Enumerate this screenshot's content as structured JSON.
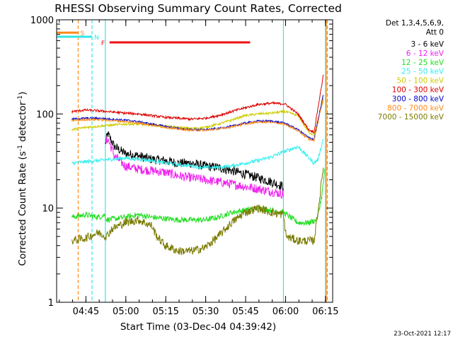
{
  "chart_data": {
    "type": "line",
    "title": "RHESSI Observing Summary Count Rates, Corrected",
    "xlabel": "Start Time (03-Dec-04 04:39:42)",
    "ylabel_main": "Corrected Count Rate (s",
    "ylabel_sup1": "-1",
    "ylabel_mid": " detector",
    "ylabel_sup2": "-1",
    "ylabel_end": ")",
    "yscale": "log",
    "ylim": [
      1,
      1000
    ],
    "xlim_minutes": [
      -5.7,
      98
    ],
    "x_ticks": [
      {
        "m": 5.3,
        "label": "04:45"
      },
      {
        "m": 20.3,
        "label": "05:00"
      },
      {
        "m": 35.3,
        "label": "05:15"
      },
      {
        "m": 50.3,
        "label": "05:30"
      },
      {
        "m": 65.3,
        "label": "05:45"
      },
      {
        "m": 80.3,
        "label": "06:00"
      },
      {
        "m": 95.3,
        "label": "06:15"
      }
    ],
    "y_ticks": [
      {
        "v": 1,
        "label": "1"
      },
      {
        "v": 10,
        "label": "10"
      },
      {
        "v": 100,
        "label": "100"
      },
      {
        "v": 1000,
        "label": "1000"
      }
    ],
    "legend": {
      "placement": "right",
      "header1": "Det 1,3,4,5,6,9,",
      "header2": "Att 0"
    },
    "footer_date": "23-Oct-2021 12:17",
    "flags": [
      {
        "label": "S",
        "color": "#ff8c1a",
        "y": 730,
        "x0": -5.7,
        "x1": 2.4
      },
      {
        "label": "N",
        "color": "#33e6e6",
        "y": 660,
        "x0": -5.7,
        "x1": 7.6
      },
      {
        "label": "F",
        "color": "#ee1111",
        "y": 575,
        "x0": 14.2,
        "x1": 67.0
      }
    ],
    "vlines": [
      {
        "m": 2.4,
        "color": "#ff8c1a",
        "dash": true
      },
      {
        "m": 7.6,
        "color": "#33e6e6",
        "dash": true
      },
      {
        "m": 12.6,
        "color": "#33e6e6",
        "dash": false
      },
      {
        "m": 79.5,
        "color": "#33e6e6",
        "dash": false
      },
      {
        "m": 95.3,
        "color": "#33e6e6",
        "dash": false
      },
      {
        "m": 95.6,
        "color": "#ff8c1a",
        "dash": false
      },
      {
        "m": 96.0,
        "color": "#ff8c1a",
        "dash": true
      }
    ],
    "series": [
      {
        "name": "3 - 6 keV",
        "color": "#000000",
        "noise": 0.1,
        "x": [
          12.6,
          13.5,
          16,
          20,
          25,
          30,
          35,
          40,
          45,
          50,
          55,
          60,
          65,
          70,
          75,
          79.5
        ],
        "y": [
          48,
          62,
          45,
          38,
          36,
          33,
          32,
          30,
          30,
          28,
          27,
          25,
          23,
          21,
          19,
          17
        ]
      },
      {
        "name": "6 - 12 keV",
        "color": "#ee22ee",
        "noise": 0.1,
        "x": [
          12.6,
          13.5,
          16,
          20,
          25,
          30,
          35,
          40,
          45,
          50,
          55,
          60,
          65,
          70,
          75,
          79.5
        ],
        "y": [
          48,
          55,
          36,
          28,
          26,
          25,
          24,
          22,
          21,
          20,
          19,
          18,
          17,
          16,
          15,
          14
        ]
      },
      {
        "name": "12 - 25 keV",
        "color": "#22dd22",
        "noise": 0.06,
        "x": [
          0,
          5,
          10,
          12.5,
          13,
          20,
          25,
          30,
          40,
          50,
          55,
          60,
          65,
          70,
          75,
          79.5,
          85,
          89,
          92,
          93,
          94,
          95
        ],
        "y": [
          8,
          8.5,
          8,
          8.5,
          7.5,
          8,
          8.5,
          8,
          7.5,
          7.5,
          8,
          9,
          9.5,
          10,
          9.5,
          9,
          7,
          7,
          7.5,
          10,
          14,
          25
        ]
      },
      {
        "name": "25 - 50 keV",
        "color": "#33eeee",
        "noise": 0.04,
        "x": [
          0,
          5,
          10,
          15,
          20,
          25,
          30,
          35,
          40,
          45,
          50,
          55,
          60,
          65,
          70,
          75,
          80,
          85,
          90,
          91,
          92.5,
          94.5
        ],
        "y": [
          30,
          31,
          32,
          33,
          34,
          33,
          32,
          30,
          29,
          28,
          27,
          27,
          28,
          30,
          32,
          35,
          40,
          45,
          32,
          30,
          33,
          55
        ]
      },
      {
        "name": "50 - 100 keV",
        "color": "#cccc00",
        "noise": 0.025,
        "x": [
          0,
          5,
          10,
          15,
          20,
          25,
          30,
          35,
          40,
          45,
          50,
          55,
          60,
          65,
          70,
          75,
          80,
          85,
          89,
          91,
          94.5
        ],
        "y": [
          68,
          72,
          74,
          76,
          78,
          78,
          76,
          74,
          72,
          70,
          72,
          78,
          86,
          96,
          100,
          102,
          106,
          96,
          64,
          60,
          140
        ]
      },
      {
        "name": "100 - 300 keV",
        "color": "#dd0000",
        "noise": 0.025,
        "x": [
          0,
          5,
          10,
          15,
          20,
          25,
          30,
          35,
          40,
          45,
          50,
          55,
          60,
          65,
          70,
          75,
          80,
          85,
          89,
          91,
          94.5
        ],
        "y": [
          106,
          110,
          108,
          105,
          102,
          100,
          96,
          92,
          90,
          88,
          90,
          96,
          106,
          116,
          126,
          130,
          128,
          100,
          68,
          64,
          260
        ]
      },
      {
        "name": "300 - 800 keV",
        "color": "#0000cc",
        "noise": 0.02,
        "x": [
          0,
          5,
          10,
          15,
          20,
          25,
          30,
          35,
          40,
          45,
          50,
          55,
          60,
          65,
          70,
          75,
          80,
          85,
          89,
          91,
          94.5
        ],
        "y": [
          88,
          90,
          90,
          88,
          86,
          83,
          78,
          74,
          70,
          68,
          68,
          70,
          74,
          80,
          84,
          84,
          80,
          68,
          56,
          54,
          160
        ]
      },
      {
        "name": "800 - 7000 keV",
        "color": "#ff8c1a",
        "noise": 0.02,
        "x": [
          0,
          5,
          10,
          15,
          20,
          25,
          30,
          35,
          40,
          45,
          50,
          55,
          60,
          65,
          70,
          75,
          80,
          85,
          89,
          91,
          94.5
        ],
        "y": [
          85,
          87,
          87,
          85,
          83,
          80,
          76,
          72,
          69,
          67,
          67,
          69,
          73,
          78,
          82,
          82,
          78,
          66,
          54,
          52,
          150
        ]
      },
      {
        "name": "7000 - 15000 keV",
        "color": "#7a7a00",
        "noise": 0.09,
        "x": [
          0,
          5,
          10,
          13,
          15,
          20,
          25,
          30,
          32,
          35,
          40,
          45,
          50,
          55,
          60,
          65,
          70,
          75,
          79.5,
          80.5,
          85,
          89,
          91,
          93,
          94.5
        ],
        "y": [
          4.5,
          4.8,
          5.5,
          5.0,
          6.0,
          7.0,
          7.5,
          6.5,
          5.0,
          4.0,
          3.5,
          3.5,
          3.8,
          5.0,
          7.0,
          9.0,
          10.0,
          9.0,
          8.5,
          5.0,
          4.5,
          4.5,
          4.5,
          12,
          28
        ]
      }
    ]
  }
}
